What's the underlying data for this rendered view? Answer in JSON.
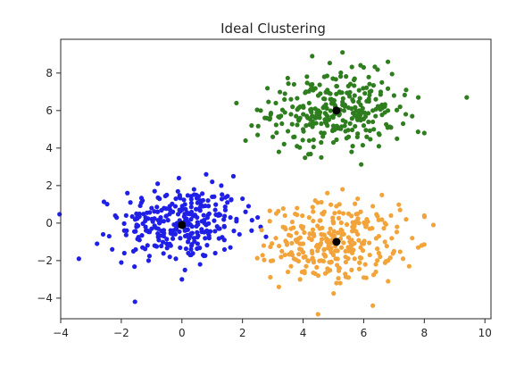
{
  "chart_data": {
    "type": "scatter",
    "title": "Ideal Clustering",
    "xlabel": "",
    "ylabel": "",
    "xlim": [
      -4,
      10.2
    ],
    "ylim": [
      -5.1,
      9.8
    ],
    "x_ticks": [
      -4,
      -2,
      0,
      2,
      4,
      6,
      8,
      10
    ],
    "y_ticks": [
      -4,
      -2,
      0,
      2,
      4,
      6,
      8
    ],
    "grid": false,
    "legend": "none",
    "colors": {
      "cluster_1": "#1f1fe6",
      "cluster_2": "#2e7d1e",
      "cluster_3": "#f2a33a",
      "centers": "#000000",
      "axis": "#262626"
    },
    "series": [
      {
        "color_key": "cluster_1",
        "center": [
          0,
          0
        ],
        "approx_count": 300,
        "points": [
          [
            -3.4,
            -1.9
          ],
          [
            -2.8,
            -1.1
          ],
          [
            -2.6,
            -0.6
          ],
          [
            -2.3,
            -1.4
          ],
          [
            -2.2,
            0.4
          ],
          [
            -2.0,
            -2.1
          ],
          [
            -1.9,
            -0.4
          ],
          [
            -1.8,
            1.6
          ],
          [
            -1.7,
            1.1
          ],
          [
            -1.6,
            -1.5
          ],
          [
            -1.5,
            0.5
          ],
          [
            -1.4,
            -0.9
          ],
          [
            -1.3,
            1.2
          ],
          [
            -1.2,
            -0.2
          ],
          [
            -1.1,
            -2.0
          ],
          [
            -1.0,
            0.8
          ],
          [
            -0.9,
            -1.2
          ],
          [
            -0.8,
            2.1
          ],
          [
            -0.7,
            0.3
          ],
          [
            -0.6,
            -0.7
          ],
          [
            -0.5,
            1.5
          ],
          [
            -0.4,
            -1.8
          ],
          [
            -0.3,
            0.6
          ],
          [
            -0.2,
            -0.3
          ],
          [
            -0.1,
            2.4
          ],
          [
            0.0,
            -3.0
          ],
          [
            0.1,
            1.0
          ],
          [
            0.2,
            -1.0
          ],
          [
            0.3,
            0.2
          ],
          [
            0.4,
            1.8
          ],
          [
            0.5,
            -0.5
          ],
          [
            0.6,
            -2.2
          ],
          [
            0.7,
            0.9
          ],
          [
            0.8,
            2.6
          ],
          [
            0.9,
            -0.8
          ],
          [
            1.0,
            1.4
          ],
          [
            1.1,
            -1.6
          ],
          [
            1.2,
            0.4
          ],
          [
            1.3,
            2.0
          ],
          [
            1.4,
            -0.2
          ],
          [
            1.5,
            1.1
          ],
          [
            1.6,
            -1.3
          ],
          [
            1.7,
            2.5
          ],
          [
            1.8,
            0.1
          ],
          [
            1.9,
            -0.6
          ],
          [
            2.0,
            1.3
          ],
          [
            2.1,
            0.6
          ],
          [
            2.3,
            -0.4
          ],
          [
            2.5,
            0.3
          ],
          [
            2.6,
            -0.2
          ],
          [
            -0.6,
            0.1
          ],
          [
            0.2,
            0.5
          ],
          [
            -0.3,
            -0.6
          ],
          [
            0.5,
            0.3
          ],
          [
            -1.0,
            -0.3
          ],
          [
            0.8,
            -0.1
          ],
          [
            -0.4,
            0.9
          ],
          [
            0.1,
            -0.4
          ],
          [
            -0.8,
            0.6
          ],
          [
            0.6,
            1.2
          ],
          [
            1.1,
            0.7
          ],
          [
            -1.5,
            -0.2
          ],
          [
            0.3,
            -1.4
          ],
          [
            -0.2,
            1.3
          ],
          [
            0.9,
            0.5
          ],
          [
            -0.5,
            -1.1
          ],
          [
            1.4,
            -0.9
          ],
          [
            -1.2,
            0.3
          ],
          [
            0.0,
            0.7
          ],
          [
            0.4,
            -0.8
          ],
          [
            -2.4,
            -0.7
          ],
          [
            -1.9,
            -1.6
          ],
          [
            1.6,
            0.3
          ],
          [
            -0.9,
            1.7
          ],
          [
            2.2,
            0.9
          ],
          [
            0.1,
            -2.5
          ],
          [
            -0.2,
            -1.9
          ],
          [
            0.7,
            -1.7
          ],
          [
            -1.3,
            -1.3
          ],
          [
            1.0,
            2.2
          ]
        ]
      },
      {
        "color_key": "cluster_2",
        "center": [
          5,
          6
        ],
        "approx_count": 300,
        "points": [
          [
            1.8,
            6.4
          ],
          [
            2.1,
            4.4
          ],
          [
            2.3,
            5.2
          ],
          [
            2.5,
            4.7
          ],
          [
            2.6,
            6.0
          ],
          [
            2.8,
            5.6
          ],
          [
            3.0,
            4.6
          ],
          [
            3.1,
            6.4
          ],
          [
            3.2,
            3.8
          ],
          [
            3.3,
            5.3
          ],
          [
            3.4,
            6.9
          ],
          [
            3.5,
            4.9
          ],
          [
            3.6,
            5.8
          ],
          [
            3.7,
            7.4
          ],
          [
            3.8,
            4.1
          ],
          [
            3.9,
            6.2
          ],
          [
            4.0,
            5.0
          ],
          [
            4.1,
            7.0
          ],
          [
            4.2,
            4.4
          ],
          [
            4.3,
            8.9
          ],
          [
            4.4,
            5.6
          ],
          [
            4.5,
            6.8
          ],
          [
            4.6,
            3.5
          ],
          [
            4.7,
            7.8
          ],
          [
            4.8,
            5.2
          ],
          [
            4.9,
            6.6
          ],
          [
            5.0,
            4.3
          ],
          [
            5.1,
            7.3
          ],
          [
            5.2,
            5.8
          ],
          [
            5.3,
            9.1
          ],
          [
            5.4,
            4.9
          ],
          [
            5.5,
            6.9
          ],
          [
            5.6,
            3.8
          ],
          [
            5.7,
            7.7
          ],
          [
            5.8,
            5.5
          ],
          [
            5.9,
            6.3
          ],
          [
            6.0,
            8.3
          ],
          [
            6.1,
            4.6
          ],
          [
            6.2,
            7.0
          ],
          [
            6.3,
            5.4
          ],
          [
            6.4,
            6.6
          ],
          [
            6.5,
            4.1
          ],
          [
            6.6,
            7.5
          ],
          [
            6.7,
            5.9
          ],
          [
            6.8,
            8.6
          ],
          [
            6.9,
            5.1
          ],
          [
            7.0,
            6.8
          ],
          [
            7.1,
            4.5
          ],
          [
            7.2,
            6.2
          ],
          [
            7.3,
            5.3
          ],
          [
            7.4,
            7.1
          ],
          [
            7.6,
            5.7
          ],
          [
            7.8,
            6.7
          ],
          [
            8.0,
            4.8
          ],
          [
            9.4,
            6.7
          ],
          [
            4.5,
            6.0
          ],
          [
            5.3,
            6.3
          ],
          [
            4.8,
            5.7
          ],
          [
            5.6,
            6.1
          ],
          [
            4.2,
            6.4
          ],
          [
            5.9,
            5.8
          ],
          [
            4.9,
            6.9
          ],
          [
            5.4,
            5.4
          ],
          [
            4.6,
            5.3
          ],
          [
            6.1,
            6.5
          ],
          [
            3.9,
            5.6
          ],
          [
            5.0,
            6.4
          ],
          [
            5.7,
            6.8
          ],
          [
            4.4,
            6.1
          ],
          [
            6.3,
            6.0
          ],
          [
            3.4,
            5.9
          ],
          [
            6.6,
            6.3
          ],
          [
            4.1,
            5.2
          ],
          [
            5.2,
            7.0
          ],
          [
            6.0,
            5.2
          ],
          [
            4.7,
            4.8
          ],
          [
            5.5,
            4.6
          ],
          [
            3.6,
            6.6
          ],
          [
            6.8,
            6.0
          ],
          [
            4.3,
            7.4
          ]
        ]
      },
      {
        "color_key": "cluster_3",
        "center": [
          5,
          -1
        ],
        "approx_count": 300,
        "points": [
          [
            2.7,
            -1.2
          ],
          [
            2.9,
            0.1
          ],
          [
            3.0,
            -2.0
          ],
          [
            3.1,
            -0.8
          ],
          [
            3.2,
            -3.4
          ],
          [
            3.3,
            -1.5
          ],
          [
            3.4,
            0.4
          ],
          [
            3.5,
            -2.6
          ],
          [
            3.6,
            -0.3
          ],
          [
            3.7,
            -1.9
          ],
          [
            3.8,
            0.8
          ],
          [
            3.9,
            -3.0
          ],
          [
            4.0,
            -1.1
          ],
          [
            4.1,
            -2.3
          ],
          [
            4.2,
            0.3
          ],
          [
            4.3,
            -1.6
          ],
          [
            4.4,
            1.2
          ],
          [
            4.5,
            -2.8
          ],
          [
            4.6,
            -0.6
          ],
          [
            4.7,
            -1.4
          ],
          [
            4.8,
            1.6
          ],
          [
            4.9,
            -2.1
          ],
          [
            5.0,
            0.0
          ],
          [
            5.1,
            -3.2
          ],
          [
            5.2,
            -0.9
          ],
          [
            5.3,
            1.8
          ],
          [
            5.4,
            -1.8
          ],
          [
            5.5,
            0.5
          ],
          [
            5.6,
            -2.5
          ],
          [
            5.7,
            -0.4
          ],
          [
            5.8,
            1.3
          ],
          [
            5.9,
            -1.3
          ],
          [
            6.0,
            -2.9
          ],
          [
            6.1,
            0.2
          ],
          [
            6.2,
            -1.7
          ],
          [
            6.3,
            0.9
          ],
          [
            6.4,
            -2.2
          ],
          [
            6.5,
            -0.7
          ],
          [
            6.6,
            1.5
          ],
          [
            6.7,
            -1.0
          ],
          [
            6.8,
            -2.0
          ],
          [
            6.9,
            0.4
          ],
          [
            7.0,
            -1.5
          ],
          [
            7.1,
            -0.2
          ],
          [
            7.2,
            0.7
          ],
          [
            7.3,
            -1.9
          ],
          [
            7.4,
            0.2
          ],
          [
            7.6,
            -0.8
          ],
          [
            7.8,
            -1.3
          ],
          [
            8.0,
            0.4
          ],
          [
            8.3,
            -0.1
          ],
          [
            6.3,
            -4.4
          ],
          [
            4.8,
            -1.0
          ],
          [
            5.3,
            -0.6
          ],
          [
            4.5,
            -1.3
          ],
          [
            5.6,
            -1.2
          ],
          [
            5.0,
            -1.7
          ],
          [
            4.2,
            -0.8
          ],
          [
            5.8,
            -0.6
          ],
          [
            4.6,
            -2.0
          ],
          [
            5.4,
            -1.5
          ],
          [
            4.9,
            -0.3
          ],
          [
            6.0,
            -1.1
          ],
          [
            4.3,
            -1.9
          ],
          [
            5.2,
            -2.4
          ],
          [
            5.7,
            -1.9
          ],
          [
            4.7,
            0.6
          ],
          [
            6.2,
            -0.3
          ],
          [
            3.8,
            -1.0
          ],
          [
            5.1,
            0.9
          ],
          [
            6.5,
            -1.6
          ],
          [
            4.0,
            -0.2
          ],
          [
            5.5,
            -2.9
          ],
          [
            3.4,
            -1.7
          ],
          [
            6.7,
            0.0
          ],
          [
            4.4,
            -2.7
          ],
          [
            5.9,
            0.6
          ],
          [
            3.6,
            -2.3
          ],
          [
            6.4,
            -2.6
          ],
          [
            7.5,
            -2.3
          ]
        ]
      }
    ],
    "centers": [
      [
        0,
        -0.1
      ],
      [
        5.1,
        6.0
      ],
      [
        5.1,
        -1.0
      ]
    ]
  }
}
